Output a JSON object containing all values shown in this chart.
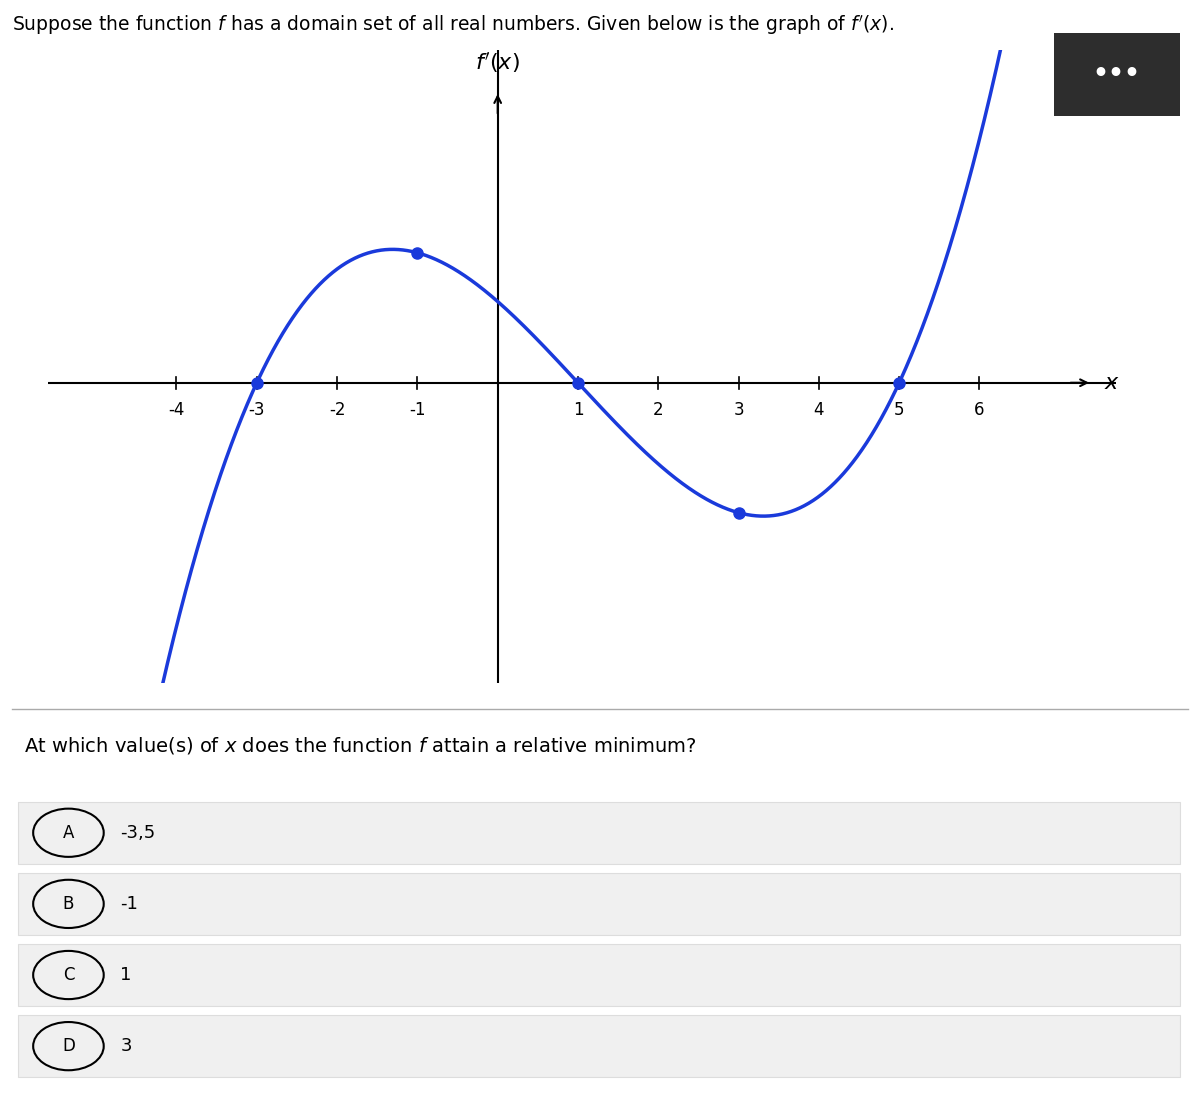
{
  "title_text": "Suppose the function f has a domain set of all real numbers. Given below is the graph of f’(x).",
  "question_text": "At which value(s) of x does the function f attain a relative minimum?",
  "choice_labels": [
    "A",
    "B",
    "C",
    "D"
  ],
  "choice_values": [
    "-3,5",
    "-1",
    "1",
    "3"
  ],
  "curve_color": "#1a3adb",
  "dot_color": "#1a3adb",
  "x_dots": [
    -3,
    -1,
    1,
    3,
    5
  ],
  "x_ticks": [
    -4,
    -3,
    -2,
    -1,
    1,
    2,
    3,
    4,
    5,
    6
  ],
  "curve_scale": 0.065,
  "graph_bgcolor": "#ffffff"
}
